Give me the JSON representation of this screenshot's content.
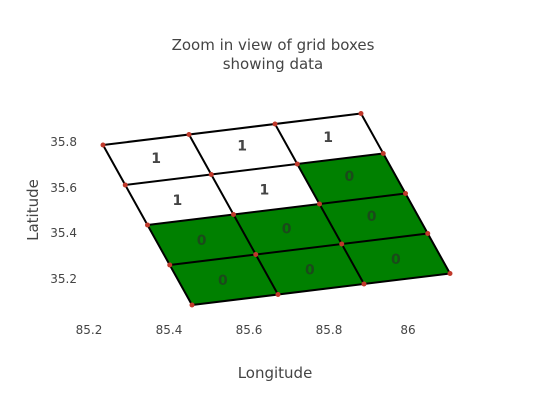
{
  "chart_data": {
    "type": "heatmap",
    "title_lines": [
      "Zoom in view of grid boxes",
      "showing data"
    ],
    "xlabel": "Longitude",
    "ylabel": "Latitude",
    "xticks": [
      "85.2",
      "85.4",
      "85.6",
      "85.8",
      "86"
    ],
    "yticks": [
      "35.2",
      "35.4",
      "35.6",
      "35.8"
    ],
    "grid": false,
    "colors": {
      "value_1": "#ffffff",
      "value_0": "#008000",
      "edge": "#000000",
      "vertex": "#c0392b",
      "value_text": "#444444",
      "axis_text": "#444444"
    },
    "cells": [
      [
        1,
        1,
        1
      ],
      [
        1,
        1,
        0
      ],
      [
        0,
        0,
        0
      ],
      [
        0,
        0,
        0
      ]
    ]
  }
}
